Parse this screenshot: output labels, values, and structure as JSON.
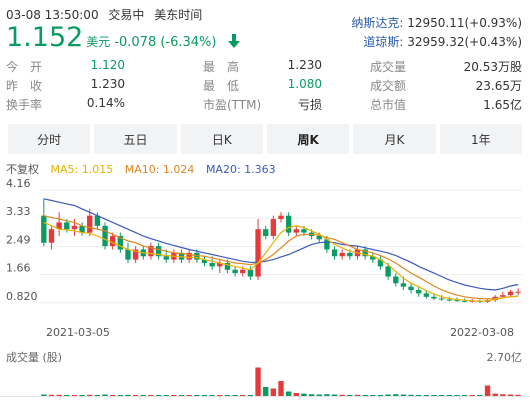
{
  "header": {
    "date_time": "03-08 13:50:00",
    "status": "交易中",
    "timezone": "美东时间"
  },
  "indices": [
    {
      "name": "纳斯达克:",
      "value": "12950.11(+0.93%)"
    },
    {
      "name": "道琼斯:",
      "value": "32959.32(+0.43%)"
    }
  ],
  "quote": {
    "price": "1.152",
    "currency": "美元",
    "change": "-0.078 (-6.34%)",
    "direction_icon": "down-arrow-icon",
    "color_down": "#0a9b62",
    "color_up": "#e63a3a"
  },
  "stats": [
    {
      "label": "今　开",
      "value": "1.120",
      "tone": "down"
    },
    {
      "label": "最　高",
      "value": "1.230",
      "tone": "neutral"
    },
    {
      "label": "成交量",
      "value": "20.53万股",
      "tone": "neutral"
    },
    {
      "label": "昨　收",
      "value": "1.230",
      "tone": "neutral"
    },
    {
      "label": "最　低",
      "value": "1.080",
      "tone": "down"
    },
    {
      "label": "成交额",
      "value": "23.65万",
      "tone": "neutral"
    },
    {
      "label": "换手率",
      "value": "0.14%",
      "tone": "neutral"
    },
    {
      "label": "市盈(TTM)",
      "value": "亏损",
      "tone": "neutral"
    },
    {
      "label": "总市值",
      "value": "1.65亿",
      "tone": "neutral"
    }
  ],
  "tabs": [
    {
      "label": "分时",
      "active": false
    },
    {
      "label": "五日",
      "active": false
    },
    {
      "label": "日K",
      "active": false
    },
    {
      "label": "周K",
      "active": true
    },
    {
      "label": "月K",
      "active": false
    },
    {
      "label": "1年",
      "active": false
    }
  ],
  "legend": {
    "adjust": "不复权",
    "ma5": "MA5: 1.015",
    "ma10": "MA10: 1.024",
    "ma20": "MA20: 1.363",
    "ma5_color": "#e8b200",
    "ma10_color": "#e0851f",
    "ma20_color": "#3b5bbd"
  },
  "volume": {
    "title": "成交量 (股)",
    "max_label": "2.70亿"
  },
  "chart_data": {
    "type": "candlestick",
    "y_ticks": [
      "4.16",
      "3.33",
      "2.49",
      "1.66",
      "0.820"
    ],
    "x_labels": [
      "2021-03-05",
      "2022-03-08"
    ],
    "ylim": [
      0.55,
      4.16
    ],
    "up_color": "#e63a3a",
    "down_color": "#0a9b62",
    "candles": [
      [
        3.4,
        3.9,
        2.5,
        2.6
      ],
      [
        2.6,
        3.1,
        2.4,
        3.0
      ],
      [
        3.0,
        3.5,
        2.8,
        3.2
      ],
      [
        3.2,
        3.3,
        2.9,
        3.0
      ],
      [
        3.0,
        3.3,
        2.8,
        3.1
      ],
      [
        3.1,
        3.2,
        2.8,
        2.9
      ],
      [
        2.9,
        3.6,
        2.8,
        3.4
      ],
      [
        3.4,
        3.5,
        3.0,
        3.1
      ],
      [
        3.1,
        3.2,
        2.4,
        2.5
      ],
      [
        2.5,
        2.9,
        2.4,
        2.8
      ],
      [
        2.8,
        2.9,
        2.3,
        2.4
      ],
      [
        2.4,
        2.6,
        2.0,
        2.1
      ],
      [
        2.1,
        2.5,
        2.0,
        2.4
      ],
      [
        2.4,
        2.5,
        2.1,
        2.2
      ],
      [
        2.2,
        2.6,
        2.1,
        2.5
      ],
      [
        2.5,
        2.6,
        2.1,
        2.2
      ],
      [
        2.2,
        2.4,
        2.0,
        2.1
      ],
      [
        2.1,
        2.4,
        2.0,
        2.3
      ],
      [
        2.3,
        2.4,
        2.0,
        2.1
      ],
      [
        2.1,
        2.4,
        2.0,
        2.3
      ],
      [
        2.3,
        2.4,
        2.0,
        2.1
      ],
      [
        2.1,
        2.2,
        1.9,
        2.0
      ],
      [
        2.0,
        2.2,
        1.8,
        1.9
      ],
      [
        1.9,
        2.1,
        1.7,
        2.0
      ],
      [
        2.0,
        2.1,
        1.7,
        1.8
      ],
      [
        1.8,
        1.9,
        1.6,
        1.7
      ],
      [
        1.7,
        1.9,
        1.6,
        1.8
      ],
      [
        1.8,
        1.9,
        1.5,
        1.6
      ],
      [
        1.6,
        3.3,
        1.5,
        3.0
      ],
      [
        3.0,
        3.1,
        2.7,
        2.8
      ],
      [
        2.8,
        3.4,
        2.7,
        3.3
      ],
      [
        3.3,
        3.5,
        3.2,
        3.4
      ],
      [
        3.4,
        3.5,
        2.8,
        2.9
      ],
      [
        2.9,
        3.1,
        2.8,
        3.0
      ],
      [
        3.0,
        3.1,
        2.8,
        2.9
      ],
      [
        2.9,
        3.0,
        2.7,
        2.8
      ],
      [
        2.8,
        2.9,
        2.6,
        2.7
      ],
      [
        2.7,
        2.8,
        2.3,
        2.4
      ],
      [
        2.4,
        2.5,
        2.1,
        2.2
      ],
      [
        2.2,
        2.4,
        2.1,
        2.3
      ],
      [
        2.3,
        2.4,
        2.1,
        2.2
      ],
      [
        2.2,
        2.5,
        2.1,
        2.4
      ],
      [
        2.4,
        2.5,
        2.1,
        2.2
      ],
      [
        2.2,
        2.3,
        2.0,
        2.1
      ],
      [
        2.1,
        2.2,
        1.8,
        1.9
      ],
      [
        1.9,
        2.0,
        1.5,
        1.6
      ],
      [
        1.6,
        1.7,
        1.3,
        1.4
      ],
      [
        1.4,
        1.6,
        1.2,
        1.3
      ],
      [
        1.3,
        1.4,
        1.1,
        1.2
      ],
      [
        1.2,
        1.3,
        1.0,
        1.1
      ],
      [
        1.1,
        1.2,
        0.95,
        1.0
      ],
      [
        1.0,
        1.1,
        0.9,
        0.95
      ],
      [
        0.95,
        1.05,
        0.88,
        0.92
      ],
      [
        0.92,
        1.0,
        0.86,
        0.9
      ],
      [
        0.9,
        0.98,
        0.85,
        0.88
      ],
      [
        0.88,
        0.95,
        0.84,
        0.86
      ],
      [
        0.86,
        0.94,
        0.83,
        0.88
      ],
      [
        0.88,
        0.92,
        0.82,
        0.85
      ],
      [
        0.85,
        0.93,
        0.82,
        0.9
      ],
      [
        0.9,
        1.05,
        0.85,
        1.0
      ],
      [
        1.0,
        1.15,
        0.95,
        1.05
      ],
      [
        1.05,
        1.2,
        1.0,
        1.15
      ],
      [
        1.15,
        1.25,
        1.05,
        1.152
      ]
    ],
    "ma5": [
      3.2,
      3.1,
      3.0,
      2.98,
      2.95,
      2.9,
      2.88,
      2.8,
      2.7,
      2.6,
      2.5,
      2.4,
      2.35,
      2.3,
      2.28,
      2.25,
      2.22,
      2.2,
      2.18,
      2.17,
      2.16,
      2.1,
      2.05,
      2.0,
      1.95,
      1.9,
      1.85,
      1.8,
      2.0,
      2.3,
      2.6,
      2.9,
      3.05,
      3.1,
      3.05,
      2.95,
      2.85,
      2.7,
      2.55,
      2.45,
      2.35,
      2.3,
      2.25,
      2.2,
      2.1,
      1.95,
      1.75,
      1.55,
      1.4,
      1.3,
      1.18,
      1.08,
      1.0,
      0.95,
      0.92,
      0.9,
      0.88,
      0.87,
      0.88,
      0.92,
      0.97,
      1.0,
      1.015
    ],
    "ma10": [
      3.4,
      3.35,
      3.3,
      3.25,
      3.2,
      3.1,
      3.05,
      3.0,
      2.95,
      2.85,
      2.75,
      2.65,
      2.6,
      2.5,
      2.45,
      2.4,
      2.35,
      2.3,
      2.28,
      2.25,
      2.22,
      2.2,
      2.15,
      2.1,
      2.05,
      2.0,
      1.98,
      1.95,
      2.0,
      2.1,
      2.25,
      2.45,
      2.65,
      2.8,
      2.85,
      2.85,
      2.82,
      2.75,
      2.7,
      2.6,
      2.5,
      2.4,
      2.35,
      2.3,
      2.22,
      2.12,
      2.0,
      1.85,
      1.7,
      1.58,
      1.45,
      1.32,
      1.2,
      1.12,
      1.05,
      1.0,
      0.97,
      0.95,
      0.94,
      0.95,
      0.97,
      1.0,
      1.024
    ],
    "ma20": [
      3.9,
      3.85,
      3.8,
      3.75,
      3.7,
      3.6,
      3.5,
      3.4,
      3.3,
      3.2,
      3.1,
      3.0,
      2.9,
      2.8,
      2.72,
      2.65,
      2.58,
      2.52,
      2.46,
      2.4,
      2.35,
      2.3,
      2.25,
      2.2,
      2.15,
      2.1,
      2.05,
      2.02,
      2.02,
      2.05,
      2.1,
      2.18,
      2.25,
      2.35,
      2.45,
      2.55,
      2.6,
      2.62,
      2.6,
      2.55,
      2.52,
      2.5,
      2.45,
      2.4,
      2.35,
      2.3,
      2.22,
      2.12,
      2.02,
      1.9,
      1.8,
      1.7,
      1.6,
      1.5,
      1.42,
      1.35,
      1.3,
      1.25,
      1.22,
      1.2,
      1.25,
      1.32,
      1.363
    ],
    "volumes": [
      0.05,
      0.04,
      0.04,
      0.03,
      0.03,
      0.03,
      0.04,
      0.03,
      0.05,
      0.03,
      0.03,
      0.04,
      0.03,
      0.03,
      0.03,
      0.02,
      0.02,
      0.02,
      0.02,
      0.02,
      0.02,
      0.02,
      0.02,
      0.02,
      0.02,
      0.02,
      0.02,
      0.03,
      0.95,
      0.3,
      0.25,
      0.5,
      0.15,
      0.1,
      0.08,
      0.06,
      0.05,
      0.06,
      0.05,
      0.04,
      0.03,
      0.04,
      0.03,
      0.03,
      0.03,
      0.05,
      0.06,
      0.05,
      0.04,
      0.03,
      0.03,
      0.03,
      0.02,
      0.02,
      0.02,
      0.02,
      0.02,
      0.02,
      0.35,
      0.08,
      0.06,
      0.05,
      0.04
    ],
    "volumes_max": 1.0
  }
}
